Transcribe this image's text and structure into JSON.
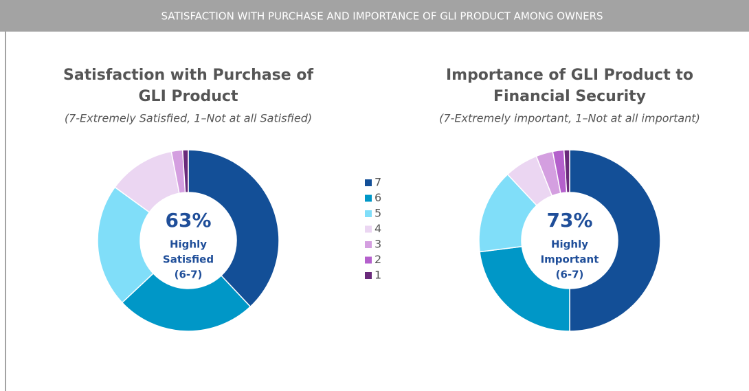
{
  "title": "SATISFACTION  WITH PURCHASE AND IMPORTANCE OF GLI PRODUCT AMONG OWNERS",
  "legend": {
    "labels": [
      "7",
      "6",
      "5",
      "4",
      "3",
      "2",
      "1"
    ],
    "colors": [
      "#134f97",
      "#0097c7",
      "#80def9",
      "#ebd6f2",
      "#d49fe0",
      "#b460cc",
      "#6a2a7b"
    ]
  },
  "chart_data": [
    {
      "type": "donut",
      "title": [
        "Satisfaction  with Purchase of",
        "GLI Product"
      ],
      "subtitle": "(7-Extremely Satisfied, 1–Not at all Satisfied)",
      "values": [
        38,
        25,
        22,
        12,
        2,
        0,
        1
      ],
      "center_text": [
        "63%",
        "Highly",
        "Satisfied",
        "(6-7)"
      ]
    },
    {
      "type": "donut",
      "title": [
        "Importance of GLI Product to",
        "Financial Security"
      ],
      "subtitle": "(7-Extremely important, 1–Not at all important)",
      "values": [
        50,
        23,
        15,
        6,
        3,
        2,
        1
      ],
      "center_text": [
        "73%",
        "Highly",
        "Important",
        "(6-7)"
      ]
    }
  ]
}
